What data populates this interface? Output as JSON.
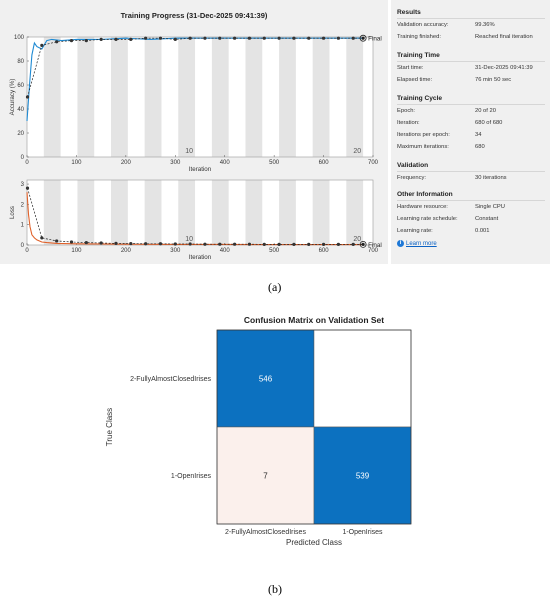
{
  "figure_labels": {
    "a": "(a)",
    "b": "(b)"
  },
  "progress": {
    "title": "Training Progress (31-Dec-2025 09:41:39)",
    "accuracy_chart": {
      "ylabel": "Accuracy (%)",
      "xlabel": "Iteration",
      "xticks": [
        0,
        100,
        200,
        300,
        400,
        500,
        600,
        700
      ],
      "yticks": [
        0,
        20,
        40,
        60,
        80,
        100
      ],
      "epoch_labels": [
        "10",
        "20"
      ],
      "final_label": "Final"
    },
    "loss_chart": {
      "ylabel": "Loss",
      "xlabel": "Iteration",
      "xticks": [
        0,
        100,
        200,
        300,
        400,
        500,
        600,
        700
      ],
      "yticks": [
        0,
        1,
        2,
        3
      ],
      "epoch_labels": [
        "10",
        "20"
      ],
      "final_label": "Final"
    }
  },
  "info": {
    "results_title": "Results",
    "validation_accuracy_label": "Validation accuracy:",
    "validation_accuracy_value": "99.36%",
    "training_finished_label": "Training finished:",
    "training_finished_value": "Reached final iteration",
    "training_time_title": "Training Time",
    "start_time_label": "Start time:",
    "start_time_value": "31-Dec-2025 09:41:39",
    "elapsed_time_label": "Elapsed time:",
    "elapsed_time_value": "76 min 50 sec",
    "training_cycle_title": "Training Cycle",
    "epoch_label": "Epoch:",
    "epoch_value": "20 of 20",
    "iteration_label": "Iteration:",
    "iteration_value": "680 of 680",
    "iter_per_epoch_label": "Iterations per epoch:",
    "iter_per_epoch_value": "34",
    "max_iter_label": "Maximum iterations:",
    "max_iter_value": "680",
    "validation_title": "Validation",
    "frequency_label": "Frequency:",
    "frequency_value": "30 iterations",
    "other_title": "Other Information",
    "hardware_label": "Hardware resource:",
    "hardware_value": "Single CPU",
    "lr_schedule_label": "Learning rate schedule:",
    "lr_schedule_value": "Constant",
    "lr_label": "Learning rate:",
    "lr_value": "0.001",
    "learn_more": "Learn more"
  },
  "confusion_matrix": {
    "title": "Confusion Matrix on Validation Set",
    "ylabel": "True Class",
    "xlabel": "Predicted Class",
    "classes": [
      "2-FullyAlmostClosedIrises",
      "1-OpenIrises"
    ],
    "counts": [
      [
        "546",
        ""
      ],
      [
        "7",
        "539"
      ]
    ],
    "colors": {
      "dark": "#0c71c0",
      "pale": "#fbf0ec",
      "empty": "#ffffff"
    }
  },
  "chart_data": [
    {
      "type": "line",
      "title": "",
      "xlabel": "Iteration",
      "ylabel": "Accuracy (%)",
      "xlim": [
        0,
        700
      ],
      "ylim": [
        0,
        100
      ],
      "series": [
        {
          "x": [
            0,
            5,
            10,
            15,
            20,
            30,
            40,
            50,
            70,
            100,
            150,
            200,
            250,
            300,
            350,
            400,
            450,
            500,
            550,
            600,
            650,
            680
          ],
          "values": [
            30,
            60,
            85,
            95,
            92,
            90,
            97,
            98,
            97,
            98,
            98,
            99,
            98,
            99,
            99,
            99,
            99,
            99,
            99,
            99,
            99,
            99
          ],
          "color": "#1f8ad3"
        },
        {
          "x": [
            1,
            30,
            60,
            90,
            120,
            150,
            180,
            210,
            240,
            270,
            300,
            330,
            360,
            390,
            420,
            450,
            480,
            510,
            540,
            570,
            600,
            630,
            660,
            680
          ],
          "values": [
            50,
            93,
            96,
            97,
            97,
            98,
            98,
            98,
            99,
            99,
            98,
            99,
            99,
            99,
            99,
            99,
            99,
            99,
            99,
            99,
            99,
            99,
            99,
            99
          ],
          "color": "#222222"
        }
      ]
    },
    {
      "type": "line",
      "title": "",
      "xlabel": "Iteration",
      "ylabel": "Loss",
      "xlim": [
        0,
        700
      ],
      "ylim": [
        0,
        3.2
      ],
      "series": [
        {
          "x": [
            0,
            3,
            6,
            10,
            15,
            20,
            30,
            40,
            60,
            100,
            200,
            300,
            400,
            500,
            600,
            680
          ],
          "values": [
            2.6,
            1.5,
            0.9,
            0.5,
            0.35,
            0.25,
            0.15,
            0.12,
            0.08,
            0.06,
            0.04,
            0.03,
            0.03,
            0.02,
            0.02,
            0.02
          ],
          "color": "#e0612a"
        },
        {
          "x": [
            1,
            30,
            60,
            90,
            120,
            150,
            180,
            210,
            240,
            270,
            300,
            330,
            360,
            390,
            420,
            450,
            480,
            510,
            540,
            570,
            600,
            630,
            660,
            680
          ],
          "values": [
            2.8,
            0.35,
            0.2,
            0.15,
            0.12,
            0.1,
            0.08,
            0.07,
            0.06,
            0.06,
            0.05,
            0.05,
            0.04,
            0.04,
            0.04,
            0.04,
            0.03,
            0.03,
            0.03,
            0.03,
            0.03,
            0.03,
            0.03,
            0.03
          ],
          "color": "#222222"
        }
      ]
    },
    {
      "type": "heatmap",
      "title": "Confusion Matrix on Validation Set",
      "xlabel": "Predicted Class",
      "ylabel": "True Class",
      "x": [
        "2-FullyAlmostClosedIrises",
        "1-OpenIrises"
      ],
      "y": [
        "2-FullyAlmostClosedIrises",
        "1-OpenIrises"
      ],
      "values": [
        [
          546,
          0
        ],
        [
          7,
          539
        ]
      ]
    }
  ]
}
